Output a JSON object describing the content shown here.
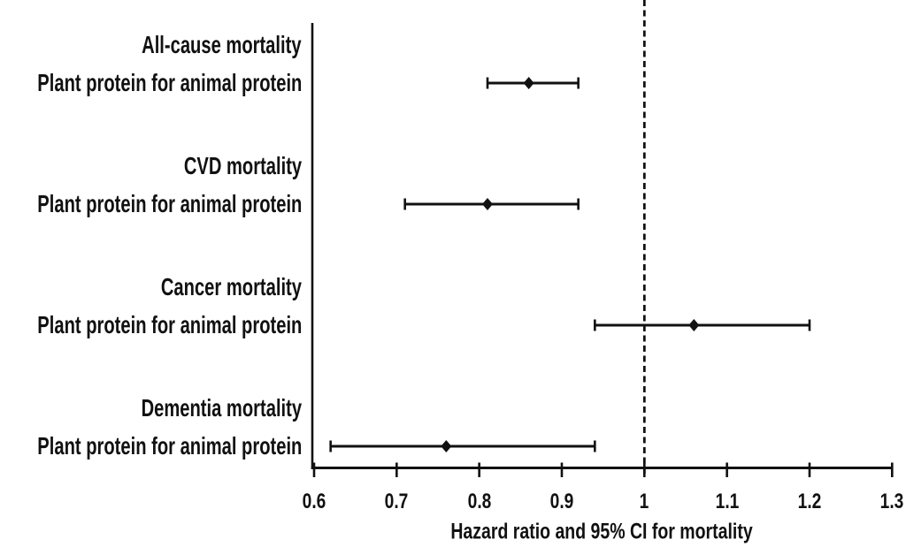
{
  "chart_data": {
    "type": "scatter",
    "subtype": "forest-plot",
    "title": "",
    "xlabel": "Hazard ratio and 95% CI for mortality",
    "ylabel": "",
    "xlim": [
      0.6,
      1.3
    ],
    "x_tick_values": [
      0.6,
      0.7,
      0.8,
      0.9,
      1.0,
      1.1,
      1.2,
      1.3
    ],
    "x_ticks": [
      "0.6",
      "0.7",
      "0.8",
      "0.9",
      "1",
      "1.1",
      "1.2",
      "1.3"
    ],
    "reference_line": 1.0,
    "reference_line_style": "dashed",
    "grid": false,
    "legend": "none",
    "marker": "diamond",
    "groups": [
      {
        "header": "All-cause mortality",
        "row_label": "Plant protein for animal protein",
        "estimate": 0.86,
        "ci_low": 0.81,
        "ci_high": 0.92
      },
      {
        "header": "CVD mortality",
        "row_label": "Plant protein for animal protein",
        "estimate": 0.81,
        "ci_low": 0.71,
        "ci_high": 0.92
      },
      {
        "header": "Cancer mortality",
        "row_label": "Plant protein for animal protein",
        "estimate": 1.06,
        "ci_low": 0.94,
        "ci_high": 1.2
      },
      {
        "header": "Dementia mortality",
        "row_label": "Plant protein for animal protein",
        "estimate": 0.76,
        "ci_low": 0.62,
        "ci_high": 0.94
      }
    ]
  },
  "colors": {
    "ink": "#111111",
    "background": "#ffffff"
  }
}
